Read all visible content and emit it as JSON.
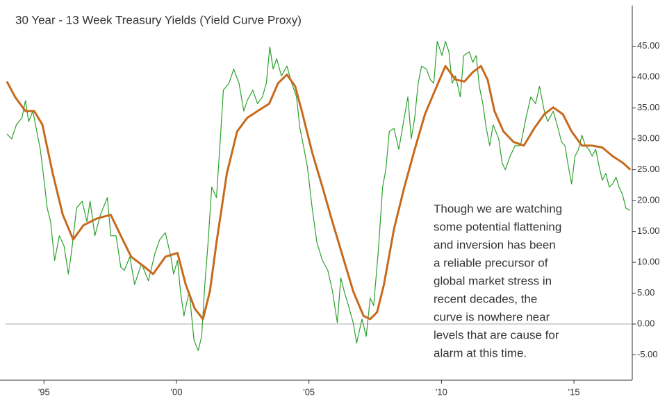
{
  "chart_data": {
    "type": "line",
    "title": "30 Year - 13 Week Treasury Yields (Yield Curve Proxy)",
    "annotation": [
      "Though we are watching",
      "some potential flattening",
      "and inversion has been",
      "a reliable precursor of",
      "global market stress in",
      "recent decades, the",
      "curve is nowhere near",
      "levels that are cause for",
      "alarm at this time."
    ],
    "xlim": [
      1993.55,
      2017.2
    ],
    "xticks": [
      {
        "value": 1995,
        "label": "'95"
      },
      {
        "value": 2000,
        "label": "'00"
      },
      {
        "value": 2005,
        "label": "'05"
      },
      {
        "value": 2010,
        "label": "'10"
      },
      {
        "value": 2015,
        "label": "'15"
      }
    ],
    "ylim": [
      -9.1,
      51.6
    ],
    "yticks": [
      {
        "value": -5,
        "label": "-5.00"
      },
      {
        "value": 0,
        "label": "0.00"
      },
      {
        "value": 5,
        "label": "5.00"
      },
      {
        "value": 10,
        "label": "10.00"
      },
      {
        "value": 15,
        "label": "15.00"
      },
      {
        "value": 20,
        "label": "20.00"
      },
      {
        "value": 25,
        "label": "25.00"
      },
      {
        "value": 30,
        "label": "30.00"
      },
      {
        "value": 35,
        "label": "35.00"
      },
      {
        "value": 40,
        "label": "40.00"
      },
      {
        "value": 45,
        "label": "45.00"
      }
    ],
    "series": [
      {
        "color": "#2ca02c",
        "x": [
          1993.6,
          1993.78,
          1993.96,
          1994.17,
          1994.3,
          1994.42,
          1994.58,
          1994.73,
          1994.86,
          1994.99,
          1995.12,
          1995.25,
          1995.4,
          1995.58,
          1995.76,
          1995.92,
          1996.05,
          1996.23,
          1996.44,
          1996.62,
          1996.74,
          1996.92,
          1997.13,
          1997.39,
          1997.52,
          1997.72,
          1997.9,
          1998.03,
          1998.24,
          1998.42,
          1998.68,
          1998.94,
          1999.19,
          1999.37,
          1999.58,
          1999.79,
          1999.89,
          2000.04,
          2000.15,
          2000.28,
          2000.48,
          2000.66,
          2000.82,
          2000.95,
          2001.07,
          2001.2,
          2001.33,
          2001.51,
          2001.64,
          2001.77,
          2001.98,
          2002.16,
          2002.36,
          2002.54,
          2002.67,
          2002.88,
          2003.06,
          2003.24,
          2003.39,
          2003.52,
          2003.65,
          2003.78,
          2003.96,
          2004.17,
          2004.35,
          2004.53,
          2004.66,
          2004.79,
          2004.94,
          2005.12,
          2005.3,
          2005.51,
          2005.71,
          2005.89,
          2006.07,
          2006.2,
          2006.33,
          2006.49,
          2006.67,
          2006.8,
          2007.0,
          2007.16,
          2007.31,
          2007.44,
          2007.62,
          2007.78,
          2007.9,
          2008.03,
          2008.21,
          2008.39,
          2008.55,
          2008.73,
          2008.86,
          2008.99,
          2009.12,
          2009.25,
          2009.43,
          2009.58,
          2009.71,
          2009.84,
          2010.02,
          2010.15,
          2010.28,
          2010.4,
          2010.53,
          2010.71,
          2010.84,
          2011.05,
          2011.18,
          2011.31,
          2011.43,
          2011.56,
          2011.69,
          2011.82,
          2011.95,
          2012.16,
          2012.29,
          2012.41,
          2012.59,
          2012.78,
          2012.98,
          2013.19,
          2013.37,
          2013.55,
          2013.7,
          2013.88,
          2014.01,
          2014.22,
          2014.4,
          2014.53,
          2014.66,
          2014.79,
          2014.91,
          2015.04,
          2015.17,
          2015.3,
          2015.43,
          2015.56,
          2015.69,
          2015.82,
          2015.95,
          2016.07,
          2016.2,
          2016.33,
          2016.46,
          2016.59,
          2016.7,
          2016.83,
          2016.96,
          2017.12
        ],
        "values": [
          30.8,
          30.0,
          32.3,
          33.4,
          36.2,
          32.8,
          34.5,
          31.2,
          28.3,
          23.8,
          18.8,
          16.6,
          10.3,
          14.3,
          12.6,
          8.1,
          12.0,
          18.8,
          19.9,
          16.6,
          19.9,
          14.3,
          17.7,
          20.5,
          14.3,
          14.3,
          9.2,
          8.7,
          10.9,
          6.4,
          9.8,
          7.0,
          11.5,
          13.7,
          14.8,
          10.9,
          8.1,
          10.3,
          5.3,
          1.3,
          5.3,
          -2.6,
          -4.3,
          -2.0,
          6.4,
          13.7,
          22.2,
          20.5,
          28.9,
          37.9,
          39.0,
          41.3,
          39.0,
          34.5,
          36.2,
          37.9,
          35.7,
          36.8,
          39.0,
          44.9,
          41.3,
          43.0,
          40.2,
          41.8,
          39.0,
          36.8,
          31.7,
          28.9,
          25.5,
          18.8,
          13.2,
          10.3,
          8.7,
          5.3,
          0.2,
          7.5,
          5.3,
          3.0,
          0.2,
          -3.1,
          0.8,
          -2.0,
          4.2,
          3.0,
          12.0,
          22.2,
          25.0,
          31.2,
          31.7,
          28.3,
          32.3,
          36.8,
          30.0,
          33.4,
          39.0,
          41.8,
          41.3,
          39.6,
          39.0,
          45.8,
          43.5,
          45.8,
          44.1,
          39.0,
          40.2,
          36.8,
          43.5,
          44.1,
          42.4,
          43.5,
          38.5,
          35.7,
          31.7,
          28.9,
          32.3,
          30.0,
          26.1,
          25.0,
          27.2,
          28.9,
          28.9,
          33.4,
          36.8,
          35.7,
          38.5,
          34.5,
          32.8,
          34.5,
          31.7,
          29.5,
          28.9,
          25.5,
          22.7,
          27.2,
          28.3,
          30.6,
          28.9,
          28.3,
          27.2,
          28.3,
          25.5,
          23.3,
          24.4,
          22.2,
          22.7,
          23.8,
          22.2,
          21.0,
          18.8,
          18.4
        ]
      },
      {
        "color": "#c8691c",
        "x": [
          1993.6,
          1993.91,
          1994.3,
          1994.63,
          1994.94,
          1995.33,
          1995.71,
          1996.1,
          1996.49,
          1997.0,
          1997.52,
          1997.9,
          1998.29,
          1998.81,
          1999.12,
          1999.58,
          2000.04,
          2000.35,
          2000.69,
          2001.0,
          2001.26,
          2001.51,
          2001.9,
          2002.29,
          2002.67,
          2003.06,
          2003.5,
          2003.83,
          2004.17,
          2004.48,
          2004.73,
          2005.12,
          2005.51,
          2005.89,
          2006.28,
          2006.67,
          2007.06,
          2007.31,
          2007.57,
          2007.83,
          2008.21,
          2008.6,
          2008.99,
          2009.38,
          2009.76,
          2010.15,
          2010.53,
          2010.87,
          2011.18,
          2011.49,
          2011.74,
          2012.0,
          2012.34,
          2012.72,
          2013.11,
          2013.5,
          2013.88,
          2014.22,
          2014.58,
          2014.91,
          2015.3,
          2015.69,
          2016.07,
          2016.46,
          2016.85,
          2017.13
        ],
        "values": [
          39.3,
          36.8,
          34.5,
          34.5,
          32.3,
          24.4,
          17.7,
          13.7,
          16.0,
          17.1,
          17.7,
          14.3,
          10.9,
          9.2,
          8.1,
          10.9,
          11.5,
          6.4,
          2.5,
          0.8,
          5.3,
          13.2,
          24.4,
          31.2,
          33.4,
          34.5,
          35.7,
          39.0,
          40.4,
          38.5,
          34.5,
          27.8,
          22.2,
          16.5,
          10.9,
          5.3,
          1.3,
          0.8,
          1.9,
          6.4,
          15.4,
          22.2,
          28.3,
          34.0,
          37.9,
          41.8,
          39.6,
          39.3,
          40.8,
          41.8,
          39.6,
          34.5,
          31.2,
          29.5,
          28.9,
          31.7,
          34.0,
          35.1,
          34.0,
          31.2,
          28.9,
          28.9,
          28.6,
          27.2,
          26.1,
          25.0
        ]
      }
    ]
  }
}
